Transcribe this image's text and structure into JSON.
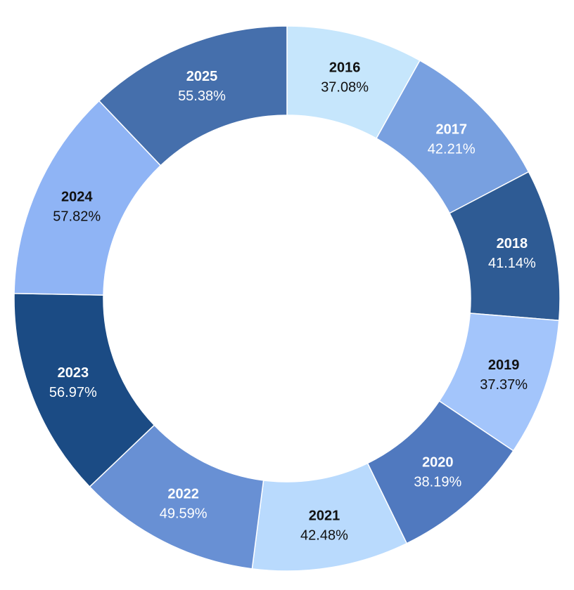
{
  "chart_data": {
    "type": "pie",
    "variant": "donut",
    "legend": "none",
    "slices": [
      {
        "label": "2016",
        "value": 37.08,
        "value_label": "37.08%",
        "color": "#c6e6fc",
        "text_color": "#111111"
      },
      {
        "label": "2017",
        "value": 42.21,
        "value_label": "42.21%",
        "color": "#78a0e0",
        "text_color": "#ffffff"
      },
      {
        "label": "2018",
        "value": 41.14,
        "value_label": "41.14%",
        "color": "#2e5b94",
        "text_color": "#ffffff"
      },
      {
        "label": "2019",
        "value": 37.37,
        "value_label": "37.37%",
        "color": "#a3c5fb",
        "text_color": "#111111"
      },
      {
        "label": "2020",
        "value": 38.19,
        "value_label": "38.19%",
        "color": "#5079bf",
        "text_color": "#ffffff"
      },
      {
        "label": "2021",
        "value": 42.48,
        "value_label": "42.48%",
        "color": "#b9dafd",
        "text_color": "#111111"
      },
      {
        "label": "2022",
        "value": 49.59,
        "value_label": "49.59%",
        "color": "#6890d4",
        "text_color": "#ffffff"
      },
      {
        "label": "2023",
        "value": 56.97,
        "value_label": "56.97%",
        "color": "#1b4b84",
        "text_color": "#ffffff"
      },
      {
        "label": "2024",
        "value": 57.82,
        "value_label": "57.82%",
        "color": "#8fb4f5",
        "text_color": "#111111"
      },
      {
        "label": "2025",
        "value": 55.38,
        "value_label": "55.38%",
        "color": "#456fac",
        "text_color": "#ffffff"
      }
    ]
  }
}
